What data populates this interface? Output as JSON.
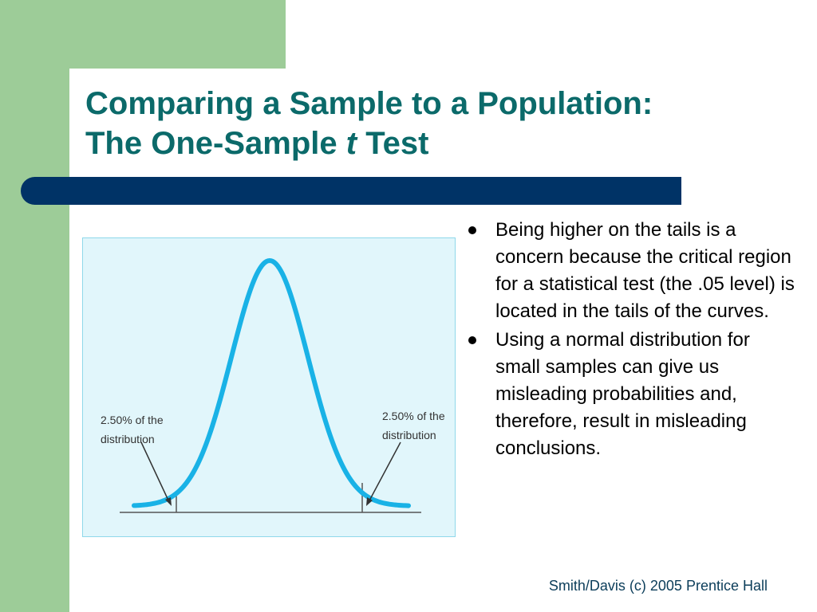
{
  "slide": {
    "title_line1": "Comparing a Sample to a Population:",
    "title_line2_prefix": "The One-Sample ",
    "title_line2_italic": "t",
    "title_line2_suffix": " Test"
  },
  "figure": {
    "left_label_line1": "2.50% of the",
    "left_label_line2": "distribution",
    "right_label_line1": "2.50% of the",
    "right_label_line2": "distribution",
    "curve_color": "#19b2e6"
  },
  "bullets": [
    "Being higher on the tails is a concern because the critical region for a statistical test (the .05 level) is located in the tails of the curves.",
    "Using a normal distribution for small samples can give us misleading probabilities and, therefore, result in misleading conclusions."
  ],
  "footer": "Smith/Davis (c) 2005 Prentice Hall",
  "colors": {
    "accent_green": "#9dcc98",
    "title": "#0b6a6a",
    "rule": "#003366"
  }
}
